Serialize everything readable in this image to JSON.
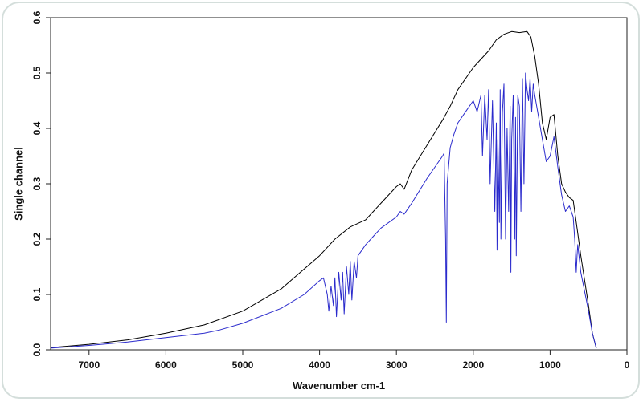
{
  "chart_data": {
    "type": "line",
    "title": "",
    "xlabel": "Wavenumber cm-1",
    "ylabel": "Single channel",
    "xlim": [
      7500,
      0
    ],
    "ylim": [
      0.0,
      0.6
    ],
    "x_ticks": [
      7000,
      6000,
      5000,
      4000,
      3000,
      2000,
      1000,
      0
    ],
    "y_ticks": [
      0.0,
      0.1,
      0.2,
      0.3,
      0.4,
      0.5,
      0.6
    ],
    "x_tick_labels": [
      "7000",
      "6000",
      "5000",
      "4000",
      "3000",
      "2000",
      "1000",
      "0"
    ],
    "y_tick_labels": [
      "0.0",
      "0.1",
      "0.2",
      "0.3",
      "0.4",
      "0.5",
      "0.6"
    ],
    "grid": false,
    "legend": "none",
    "series": [
      {
        "color": "#000000",
        "x": [
          7500,
          7000,
          6500,
          6000,
          5500,
          5000,
          4500,
          4000,
          3800,
          3600,
          3400,
          3200,
          3000,
          2950,
          2900,
          2800,
          2600,
          2400,
          2300,
          2200,
          2000,
          1800,
          1700,
          1600,
          1500,
          1400,
          1300,
          1250,
          1200,
          1150,
          1100,
          1050,
          1000,
          950,
          900,
          850,
          800,
          750,
          700,
          650,
          600,
          500,
          450,
          400
        ],
        "y": [
          0.004,
          0.01,
          0.018,
          0.03,
          0.045,
          0.07,
          0.11,
          0.17,
          0.2,
          0.222,
          0.235,
          0.265,
          0.295,
          0.3,
          0.29,
          0.325,
          0.37,
          0.415,
          0.44,
          0.47,
          0.51,
          0.54,
          0.56,
          0.57,
          0.575,
          0.573,
          0.575,
          0.565,
          0.53,
          0.48,
          0.41,
          0.38,
          0.42,
          0.425,
          0.35,
          0.3,
          0.285,
          0.275,
          0.27,
          0.22,
          0.17,
          0.08,
          0.03,
          0.003
        ]
      },
      {
        "color": "#2a2acc",
        "x": [
          7500,
          7000,
          6500,
          6000,
          5500,
          5300,
          5000,
          4500,
          4200,
          4000,
          3950,
          3900,
          3880,
          3850,
          3820,
          3800,
          3780,
          3750,
          3720,
          3700,
          3680,
          3650,
          3620,
          3600,
          3580,
          3550,
          3520,
          3500,
          3450,
          3400,
          3300,
          3200,
          3000,
          2950,
          2900,
          2800,
          2600,
          2400,
          2380,
          2360,
          2350,
          2340,
          2300,
          2250,
          2200,
          2100,
          2000,
          1950,
          1900,
          1880,
          1850,
          1820,
          1800,
          1780,
          1750,
          1720,
          1700,
          1690,
          1680,
          1660,
          1650,
          1640,
          1620,
          1600,
          1580,
          1560,
          1540,
          1520,
          1510,
          1500,
          1480,
          1460,
          1450,
          1440,
          1420,
          1400,
          1380,
          1360,
          1340,
          1320,
          1300,
          1280,
          1260,
          1240,
          1220,
          1200,
          1150,
          1100,
          1050,
          1000,
          950,
          900,
          850,
          800,
          750,
          700,
          680,
          660,
          650,
          640,
          600,
          500,
          450,
          400
        ],
        "y": [
          0.003,
          0.008,
          0.014,
          0.022,
          0.03,
          0.036,
          0.048,
          0.075,
          0.1,
          0.125,
          0.13,
          0.1,
          0.07,
          0.115,
          0.08,
          0.13,
          0.06,
          0.14,
          0.09,
          0.14,
          0.065,
          0.15,
          0.1,
          0.16,
          0.09,
          0.16,
          0.13,
          0.17,
          0.18,
          0.19,
          0.205,
          0.22,
          0.24,
          0.25,
          0.245,
          0.265,
          0.31,
          0.35,
          0.355,
          0.2,
          0.05,
          0.3,
          0.365,
          0.39,
          0.41,
          0.43,
          0.45,
          0.43,
          0.46,
          0.35,
          0.46,
          0.38,
          0.47,
          0.3,
          0.45,
          0.25,
          0.41,
          0.18,
          0.38,
          0.23,
          0.47,
          0.2,
          0.43,
          0.48,
          0.2,
          0.4,
          0.25,
          0.44,
          0.14,
          0.38,
          0.46,
          0.2,
          0.42,
          0.17,
          0.46,
          0.44,
          0.25,
          0.49,
          0.3,
          0.5,
          0.47,
          0.45,
          0.49,
          0.43,
          0.48,
          0.46,
          0.42,
          0.38,
          0.34,
          0.35,
          0.385,
          0.33,
          0.28,
          0.25,
          0.26,
          0.24,
          0.2,
          0.14,
          0.17,
          0.19,
          0.14,
          0.07,
          0.03,
          0.003
        ]
      }
    ]
  }
}
